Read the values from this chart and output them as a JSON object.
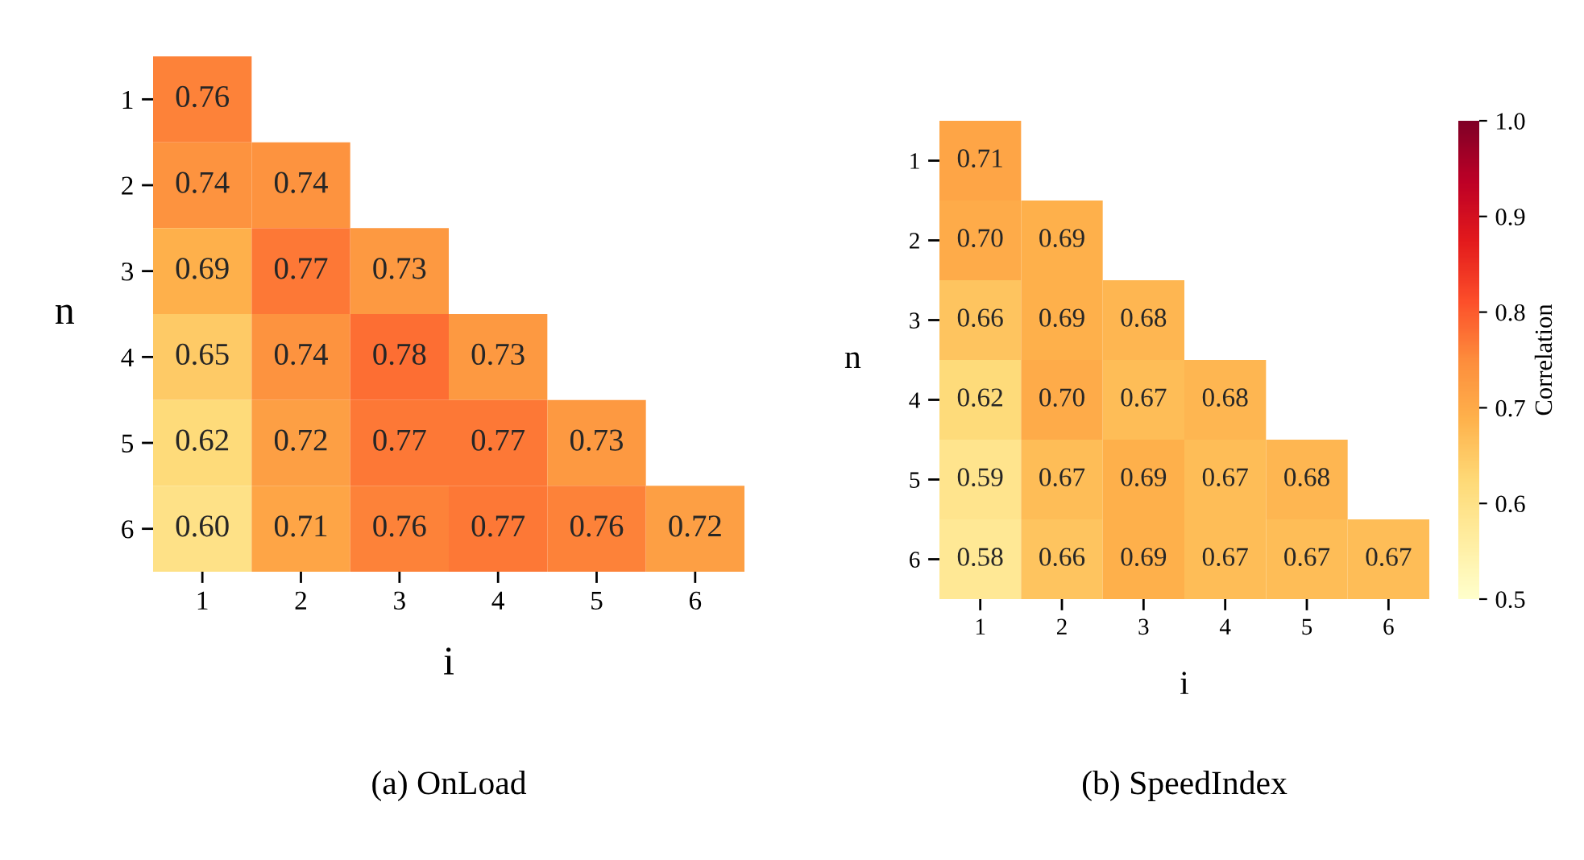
{
  "chart_data": [
    {
      "type": "heatmap",
      "title": "(a) OnLoad",
      "xlabel": "i",
      "ylabel": "n",
      "categories": [
        "1",
        "2",
        "3",
        "4",
        "5",
        "6"
      ],
      "y_categories": [
        "1",
        "2",
        "3",
        "4",
        "5",
        "6"
      ],
      "cells": [
        [
          0.76,
          null,
          null,
          null,
          null,
          null
        ],
        [
          0.74,
          0.74,
          null,
          null,
          null,
          null
        ],
        [
          0.69,
          0.77,
          0.73,
          null,
          null,
          null
        ],
        [
          0.65,
          0.74,
          0.78,
          0.73,
          null,
          null
        ],
        [
          0.62,
          0.72,
          0.77,
          0.77,
          0.73,
          null
        ],
        [
          0.6,
          0.71,
          0.76,
          0.77,
          0.76,
          0.72
        ]
      ],
      "cell_labels": [
        [
          "0.76",
          null,
          null,
          null,
          null,
          null
        ],
        [
          "0.74",
          "0.74",
          null,
          null,
          null,
          null
        ],
        [
          "0.69",
          "0.77",
          "0.73",
          null,
          null,
          null
        ],
        [
          "0.65",
          "0.74",
          "0.78",
          "0.73",
          null,
          null
        ],
        [
          "0.62",
          "0.72",
          "0.77",
          "0.77",
          "0.73",
          null
        ],
        [
          "0.60",
          "0.71",
          "0.76",
          "0.77",
          "0.76",
          "0.72"
        ]
      ]
    },
    {
      "type": "heatmap",
      "title": "(b) SpeedIndex",
      "xlabel": "i",
      "ylabel": "n",
      "clabel": "Correlation",
      "categories": [
        "1",
        "2",
        "3",
        "4",
        "5",
        "6"
      ],
      "y_categories": [
        "1",
        "2",
        "3",
        "4",
        "5",
        "6"
      ],
      "cells": [
        [
          0.71,
          null,
          null,
          null,
          null,
          null
        ],
        [
          0.7,
          0.69,
          null,
          null,
          null,
          null
        ],
        [
          0.66,
          0.69,
          0.68,
          null,
          null,
          null
        ],
        [
          0.62,
          0.7,
          0.67,
          0.68,
          null,
          null
        ],
        [
          0.59,
          0.67,
          0.69,
          0.67,
          0.68,
          null
        ],
        [
          0.58,
          0.66,
          0.69,
          0.67,
          0.67,
          0.67
        ]
      ],
      "cell_labels": [
        [
          "0.71",
          null,
          null,
          null,
          null,
          null
        ],
        [
          "0.70",
          "0.69",
          null,
          null,
          null,
          null
        ],
        [
          "0.66",
          "0.69",
          "0.68",
          null,
          null,
          null
        ],
        [
          "0.62",
          "0.70",
          "0.67",
          "0.68",
          null,
          null
        ],
        [
          "0.59",
          "0.67",
          "0.69",
          "0.67",
          "0.68",
          null
        ],
        [
          "0.58",
          "0.66",
          "0.69",
          "0.67",
          "0.67",
          "0.67"
        ]
      ],
      "clim": [
        0.5,
        1.0
      ],
      "cticks": [
        0.5,
        0.6,
        0.7,
        0.8,
        0.9,
        {
          "value": 1.0,
          "label": "1.0"
        }
      ]
    }
  ]
}
